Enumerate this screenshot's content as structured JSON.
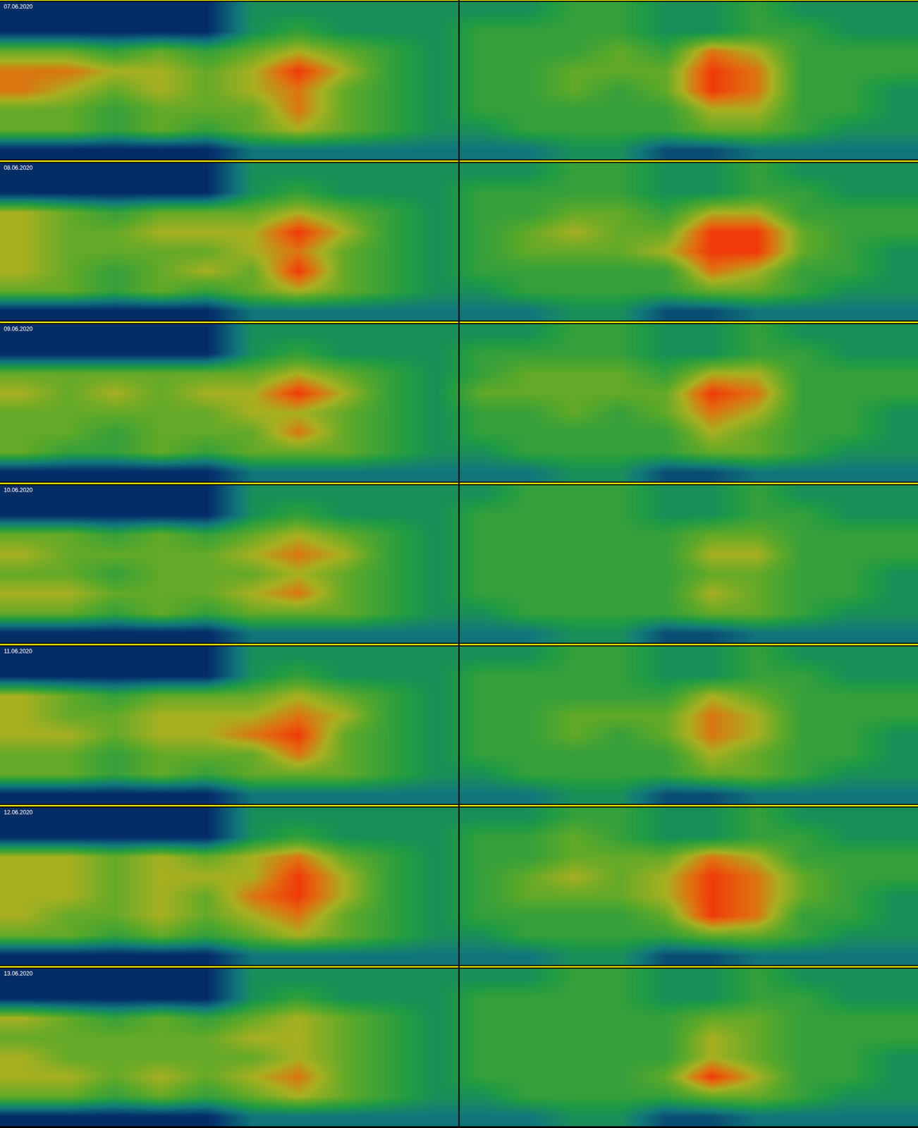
{
  "chart_data": [
    {
      "type": "heatmap",
      "title": "07.06.2020",
      "tick_labels": false,
      "zlim": [
        0,
        9
      ],
      "z": [
        [
          1,
          1,
          1,
          1,
          1,
          4,
          4,
          4,
          4,
          4,
          4,
          4,
          5,
          5,
          4,
          4,
          5,
          4,
          4,
          4
        ],
        [
          1,
          1,
          1,
          1,
          1,
          4,
          5,
          4,
          4,
          4,
          5,
          5,
          5,
          5,
          4,
          4,
          5,
          5,
          4,
          4
        ],
        [
          6,
          6,
          5,
          6,
          5,
          6,
          7,
          6,
          5,
          4,
          5,
          5,
          5,
          6,
          5,
          8,
          7,
          5,
          5,
          5
        ],
        [
          8,
          8,
          7,
          7,
          6,
          7,
          9,
          7,
          5,
          4,
          5,
          5,
          6,
          6,
          6,
          9,
          8,
          5,
          5,
          5
        ],
        [
          8,
          7,
          6,
          7,
          6,
          7,
          8,
          6,
          5,
          4,
          5,
          5,
          6,
          5,
          6,
          9,
          8,
          5,
          5,
          4
        ],
        [
          6,
          6,
          5,
          6,
          6,
          6,
          8,
          6,
          5,
          4,
          5,
          5,
          5,
          5,
          5,
          7,
          7,
          5,
          5,
          4
        ],
        [
          6,
          6,
          5,
          6,
          5,
          6,
          7,
          6,
          5,
          4,
          4,
          5,
          5,
          5,
          5,
          6,
          6,
          5,
          4,
          4
        ],
        [
          1,
          1,
          1,
          1,
          1,
          3,
          3,
          3,
          3,
          3,
          3,
          3,
          4,
          4,
          2,
          2,
          3,
          3,
          3,
          3
        ]
      ]
    },
    {
      "type": "heatmap",
      "title": "08.06.2020",
      "tick_labels": false,
      "zlim": [
        0,
        9
      ],
      "z": [
        [
          1,
          1,
          1,
          1,
          1,
          4,
          4,
          4,
          4,
          4,
          4,
          4,
          5,
          5,
          4,
          4,
          5,
          4,
          4,
          4
        ],
        [
          1,
          1,
          1,
          1,
          1,
          4,
          5,
          4,
          4,
          4,
          5,
          5,
          5,
          5,
          4,
          4,
          5,
          5,
          4,
          4
        ],
        [
          7,
          6,
          5,
          6,
          6,
          6,
          7,
          6,
          5,
          4,
          5,
          5,
          6,
          6,
          5,
          7,
          7,
          5,
          5,
          5
        ],
        [
          7,
          6,
          6,
          7,
          7,
          7,
          9,
          7,
          5,
          4,
          5,
          6,
          7,
          6,
          6,
          9,
          9,
          6,
          5,
          5
        ],
        [
          7,
          6,
          6,
          6,
          6,
          7,
          8,
          6,
          5,
          4,
          5,
          6,
          6,
          6,
          7,
          9,
          9,
          6,
          5,
          4
        ],
        [
          7,
          6,
          5,
          6,
          7,
          6,
          9,
          6,
          5,
          4,
          5,
          5,
          5,
          5,
          5,
          8,
          7,
          5,
          5,
          4
        ],
        [
          6,
          6,
          5,
          6,
          5,
          6,
          7,
          6,
          5,
          4,
          4,
          5,
          5,
          5,
          5,
          6,
          6,
          5,
          4,
          4
        ],
        [
          1,
          1,
          1,
          1,
          1,
          3,
          3,
          3,
          3,
          3,
          3,
          3,
          4,
          4,
          2,
          2,
          3,
          3,
          3,
          3
        ]
      ]
    },
    {
      "type": "heatmap",
      "title": "09.06.2020",
      "tick_labels": false,
      "zlim": [
        0,
        9
      ],
      "z": [
        [
          1,
          1,
          1,
          1,
          1,
          4,
          4,
          4,
          4,
          4,
          4,
          4,
          5,
          5,
          4,
          4,
          5,
          4,
          4,
          4
        ],
        [
          1,
          1,
          1,
          1,
          1,
          4,
          5,
          4,
          4,
          4,
          5,
          5,
          5,
          5,
          4,
          4,
          5,
          5,
          4,
          4
        ],
        [
          6,
          6,
          6,
          6,
          6,
          6,
          7,
          6,
          5,
          4,
          5,
          6,
          6,
          6,
          5,
          7,
          7,
          5,
          5,
          5
        ],
        [
          7,
          6,
          7,
          6,
          7,
          7,
          9,
          7,
          5,
          4,
          6,
          6,
          6,
          6,
          6,
          9,
          8,
          5,
          5,
          5
        ],
        [
          6,
          6,
          6,
          6,
          6,
          7,
          7,
          6,
          5,
          4,
          5,
          5,
          6,
          5,
          6,
          8,
          7,
          5,
          5,
          4
        ],
        [
          6,
          6,
          5,
          6,
          6,
          6,
          8,
          6,
          5,
          4,
          5,
          5,
          5,
          5,
          5,
          7,
          6,
          5,
          5,
          4
        ],
        [
          6,
          5,
          5,
          6,
          5,
          6,
          6,
          6,
          5,
          4,
          4,
          5,
          5,
          5,
          5,
          6,
          6,
          5,
          4,
          4
        ],
        [
          1,
          1,
          1,
          1,
          1,
          3,
          3,
          3,
          3,
          3,
          3,
          3,
          4,
          4,
          2,
          2,
          3,
          3,
          3,
          3
        ]
      ]
    },
    {
      "type": "heatmap",
      "title": "10.06.2020",
      "tick_labels": false,
      "zlim": [
        0,
        9
      ],
      "z": [
        [
          1,
          1,
          1,
          1,
          1,
          4,
          4,
          4,
          4,
          4,
          4,
          5,
          5,
          5,
          4,
          4,
          5,
          4,
          4,
          4
        ],
        [
          1,
          1,
          1,
          1,
          1,
          4,
          5,
          4,
          4,
          4,
          5,
          5,
          5,
          5,
          4,
          4,
          5,
          5,
          4,
          4
        ],
        [
          6,
          6,
          5,
          6,
          5,
          6,
          7,
          6,
          5,
          4,
          5,
          5,
          5,
          5,
          5,
          6,
          6,
          5,
          5,
          5
        ],
        [
          7,
          6,
          6,
          6,
          6,
          7,
          8,
          7,
          5,
          4,
          5,
          5,
          5,
          5,
          5,
          7,
          7,
          5,
          5,
          5
        ],
        [
          6,
          6,
          5,
          6,
          6,
          6,
          7,
          6,
          5,
          4,
          5,
          5,
          5,
          5,
          5,
          6,
          6,
          5,
          5,
          4
        ],
        [
          7,
          7,
          6,
          6,
          6,
          7,
          8,
          6,
          5,
          4,
          5,
          5,
          5,
          5,
          5,
          7,
          6,
          5,
          5,
          4
        ],
        [
          6,
          6,
          5,
          6,
          5,
          6,
          6,
          6,
          5,
          4,
          4,
          5,
          5,
          5,
          5,
          6,
          6,
          5,
          4,
          4
        ],
        [
          1,
          1,
          1,
          1,
          1,
          3,
          3,
          3,
          3,
          3,
          3,
          3,
          4,
          4,
          2,
          2,
          3,
          3,
          3,
          3
        ]
      ]
    },
    {
      "type": "heatmap",
      "title": "11.06.2020",
      "tick_labels": false,
      "zlim": [
        0,
        9
      ],
      "z": [
        [
          1,
          1,
          1,
          1,
          1,
          4,
          4,
          4,
          4,
          4,
          4,
          4,
          5,
          5,
          4,
          4,
          5,
          4,
          4,
          4
        ],
        [
          1,
          1,
          1,
          1,
          1,
          4,
          5,
          4,
          4,
          4,
          5,
          5,
          5,
          5,
          4,
          4,
          5,
          5,
          4,
          4
        ],
        [
          7,
          6,
          5,
          6,
          6,
          6,
          7,
          6,
          5,
          4,
          5,
          5,
          5,
          5,
          5,
          7,
          6,
          5,
          5,
          5
        ],
        [
          7,
          6,
          6,
          7,
          7,
          7,
          8,
          7,
          5,
          4,
          5,
          5,
          6,
          6,
          6,
          8,
          7,
          5,
          5,
          5
        ],
        [
          7,
          7,
          6,
          7,
          7,
          8,
          9,
          6,
          5,
          4,
          5,
          5,
          6,
          5,
          6,
          8,
          7,
          5,
          5,
          4
        ],
        [
          6,
          6,
          5,
          6,
          6,
          6,
          8,
          6,
          5,
          4,
          5,
          5,
          5,
          5,
          5,
          7,
          6,
          5,
          5,
          4
        ],
        [
          6,
          6,
          5,
          6,
          5,
          6,
          6,
          6,
          5,
          4,
          4,
          5,
          5,
          5,
          5,
          6,
          6,
          5,
          4,
          4
        ],
        [
          1,
          1,
          1,
          1,
          1,
          3,
          3,
          3,
          3,
          3,
          3,
          3,
          4,
          4,
          2,
          2,
          3,
          3,
          3,
          3
        ]
      ]
    },
    {
      "type": "heatmap",
      "title": "12.06.2020",
      "tick_labels": false,
      "zlim": [
        0,
        9
      ],
      "z": [
        [
          1,
          1,
          1,
          1,
          1,
          4,
          4,
          4,
          4,
          4,
          4,
          4,
          5,
          5,
          4,
          4,
          5,
          4,
          4,
          4
        ],
        [
          1,
          1,
          1,
          1,
          1,
          4,
          5,
          4,
          4,
          4,
          5,
          5,
          6,
          5,
          4,
          4,
          5,
          5,
          4,
          4
        ],
        [
          7,
          7,
          6,
          7,
          6,
          7,
          8,
          6,
          5,
          4,
          5,
          5,
          6,
          6,
          6,
          8,
          7,
          5,
          5,
          5
        ],
        [
          7,
          7,
          6,
          7,
          7,
          7,
          9,
          7,
          5,
          4,
          5,
          6,
          7,
          6,
          7,
          9,
          8,
          6,
          5,
          5
        ],
        [
          7,
          7,
          6,
          7,
          6,
          8,
          9,
          7,
          5,
          4,
          5,
          6,
          6,
          6,
          7,
          9,
          8,
          6,
          5,
          4
        ],
        [
          7,
          6,
          6,
          7,
          6,
          7,
          8,
          6,
          5,
          4,
          5,
          5,
          5,
          5,
          6,
          9,
          8,
          5,
          5,
          4
        ],
        [
          6,
          6,
          5,
          6,
          5,
          6,
          7,
          6,
          5,
          4,
          4,
          5,
          5,
          5,
          5,
          6,
          6,
          5,
          4,
          4
        ],
        [
          1,
          1,
          1,
          1,
          1,
          3,
          3,
          3,
          3,
          3,
          3,
          3,
          4,
          4,
          2,
          2,
          3,
          3,
          3,
          3
        ]
      ]
    },
    {
      "type": "heatmap",
      "title": "13.06.2020",
      "tick_labels": false,
      "zlim": [
        0,
        9
      ],
      "z": [
        [
          1,
          1,
          1,
          1,
          1,
          4,
          4,
          4,
          4,
          4,
          4,
          4,
          5,
          5,
          4,
          4,
          5,
          4,
          4,
          4
        ],
        [
          1,
          1,
          1,
          1,
          1,
          4,
          5,
          4,
          4,
          4,
          5,
          5,
          5,
          5,
          4,
          4,
          5,
          5,
          4,
          4
        ],
        [
          7,
          6,
          5,
          6,
          5,
          6,
          7,
          6,
          5,
          4,
          5,
          5,
          5,
          5,
          5,
          6,
          6,
          5,
          5,
          5
        ],
        [
          6,
          6,
          6,
          6,
          6,
          7,
          7,
          6,
          5,
          4,
          5,
          5,
          5,
          5,
          5,
          7,
          6,
          5,
          5,
          5
        ],
        [
          7,
          6,
          6,
          6,
          6,
          6,
          7,
          6,
          5,
          4,
          5,
          5,
          5,
          5,
          5,
          7,
          6,
          5,
          5,
          4
        ],
        [
          7,
          7,
          6,
          7,
          6,
          7,
          8,
          6,
          5,
          4,
          5,
          5,
          5,
          5,
          6,
          9,
          7,
          5,
          5,
          4
        ],
        [
          6,
          6,
          5,
          6,
          5,
          6,
          7,
          6,
          5,
          4,
          4,
          5,
          5,
          5,
          5,
          6,
          6,
          5,
          4,
          4
        ],
        [
          1,
          1,
          1,
          1,
          1,
          3,
          3,
          3,
          3,
          3,
          3,
          3,
          4,
          4,
          2,
          2,
          3,
          3,
          3,
          3
        ]
      ]
    }
  ]
}
